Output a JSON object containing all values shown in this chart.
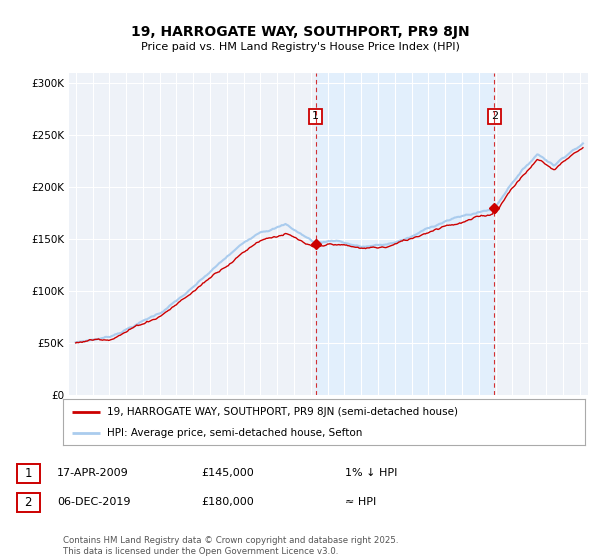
{
  "title": "19, HARROGATE WAY, SOUTHPORT, PR9 8JN",
  "subtitle": "Price paid vs. HM Land Registry's House Price Index (HPI)",
  "ylabel_ticks": [
    "£0",
    "£50K",
    "£100K",
    "£150K",
    "£200K",
    "£250K",
    "£300K"
  ],
  "ytick_values": [
    0,
    50000,
    100000,
    150000,
    200000,
    250000,
    300000
  ],
  "ylim": [
    0,
    310000
  ],
  "hpi_color": "#aaccee",
  "price_color": "#cc0000",
  "shade_color": "#ddeeff",
  "marker1_year": 2009.29,
  "marker2_year": 2019.92,
  "marker1_price": 145000,
  "marker2_price": 180000,
  "legend_label1": "19, HARROGATE WAY, SOUTHPORT, PR9 8JN (semi-detached house)",
  "legend_label2": "HPI: Average price, semi-detached house, Sefton",
  "annotation1_label": "17-APR-2009",
  "annotation1_price": "£145,000",
  "annotation1_hpi": "1% ↓ HPI",
  "annotation2_label": "06-DEC-2019",
  "annotation2_price": "£180,000",
  "annotation2_hpi": "≈ HPI",
  "footnote": "Contains HM Land Registry data © Crown copyright and database right 2025.\nThis data is licensed under the Open Government Licence v3.0.",
  "bg_color": "#eef2f8",
  "grid_color": "#ffffff",
  "fig_bg": "#ffffff"
}
